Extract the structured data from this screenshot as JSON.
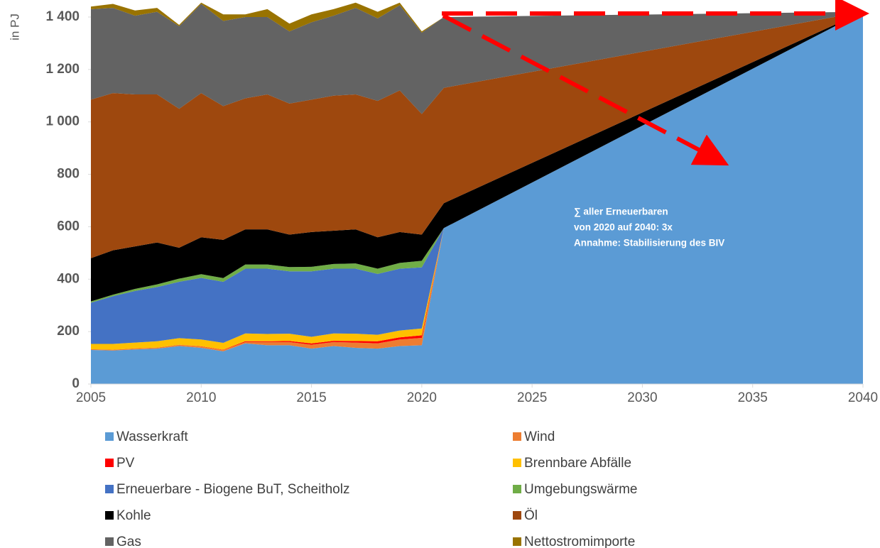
{
  "chart_data": {
    "type": "stacked_area",
    "y_label": "in PJ",
    "x": [
      2005,
      2006,
      2007,
      2008,
      2009,
      2010,
      2011,
      2012,
      2013,
      2014,
      2015,
      2016,
      2017,
      2018,
      2019,
      2020,
      2021,
      2040
    ],
    "xlim": [
      2005,
      2040
    ],
    "xticks": [
      2005,
      2010,
      2015,
      2020,
      2025,
      2030,
      2035,
      2040
    ],
    "ylim": [
      0,
      1450
    ],
    "yticks": [
      0,
      200,
      400,
      600,
      800,
      {
        "value": 1000,
        "label": "1 000"
      },
      {
        "value": 1200,
        "label": "1 200"
      },
      {
        "value": 1400,
        "label": "1 400"
      }
    ],
    "series": [
      {
        "name": "Wasserkraft",
        "color": "#5b9bd5",
        "values": [
          130,
          128,
          132,
          135,
          145,
          138,
          125,
          155,
          148,
          148,
          135,
          145,
          138,
          135,
          145,
          148,
          595,
          1420
        ]
      },
      {
        "name": "Wind",
        "color": "#ed7d31",
        "values": [
          3,
          3,
          4,
          4,
          5,
          5,
          5,
          5,
          12,
          12,
          15,
          15,
          20,
          20,
          25,
          28,
          0,
          0
        ]
      },
      {
        "name": "PV",
        "color": "#ff0000",
        "values": [
          0,
          0,
          0,
          0,
          0,
          1,
          1,
          3,
          3,
          4,
          5,
          5,
          6,
          8,
          8,
          10,
          0,
          0
        ]
      },
      {
        "name": "Brennbare Abfälle",
        "color": "#ffc000",
        "values": [
          20,
          22,
          22,
          24,
          25,
          26,
          26,
          30,
          28,
          28,
          25,
          28,
          28,
          25,
          26,
          26,
          0,
          0
        ]
      },
      {
        "name": "Erneuerbare - Biogene BuT, Scheitholz",
        "color": "#4472c4",
        "values": [
          157,
          182,
          197,
          207,
          215,
          235,
          233,
          247,
          249,
          238,
          250,
          247,
          248,
          232,
          236,
          233,
          0,
          0
        ]
      },
      {
        "name": "Umgebungswärme",
        "color": "#70ad47",
        "values": [
          5,
          6,
          8,
          10,
          12,
          14,
          14,
          16,
          16,
          16,
          17,
          18,
          20,
          20,
          22,
          25,
          0,
          0
        ]
      },
      {
        "name": "Kohle",
        "color": "#000000",
        "values": [
          165,
          169,
          162,
          160,
          118,
          141,
          146,
          134,
          134,
          124,
          133,
          127,
          130,
          120,
          118,
          100,
          95,
          0
        ]
      },
      {
        "name": "Öl",
        "color": "#9e480e",
        "values": [
          605,
          600,
          580,
          565,
          530,
          550,
          510,
          500,
          515,
          500,
          505,
          515,
          515,
          520,
          540,
          460,
          440,
          0
        ]
      },
      {
        "name": "Gas",
        "color": "#636363",
        "values": [
          345,
          325,
          300,
          315,
          315,
          340,
          325,
          310,
          295,
          275,
          295,
          305,
          330,
          315,
          325,
          310,
          270,
          0
        ]
      },
      {
        "name": "Nettostromimporte",
        "color": "#997300",
        "values": [
          10,
          15,
          20,
          15,
          5,
          5,
          25,
          10,
          30,
          30,
          30,
          25,
          20,
          25,
          10,
          5,
          0,
          0
        ]
      }
    ],
    "annotations": [
      "∑ aller Erneuerbaren",
      "von 2020 auf 2040: 3x",
      "Annahme: Stabilisierung des BIV"
    ]
  }
}
